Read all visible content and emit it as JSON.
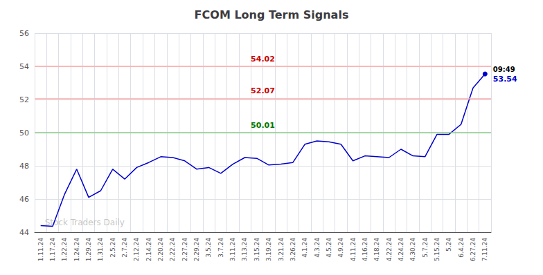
{
  "chart_data": {
    "type": "line",
    "title": "FCOM Long Term Signals",
    "categories": [
      "1.11.24",
      "1.17.24",
      "1.22.24",
      "1.24.24",
      "1.29.24",
      "1.31.24",
      "2.5.24",
      "2.7.24",
      "2.12.24",
      "2.14.24",
      "2.20.24",
      "2.22.24",
      "2.27.24",
      "2.29.24",
      "3.5.24",
      "3.7.24",
      "3.11.24",
      "3.13.24",
      "3.15.24",
      "3.19.24",
      "3.21.24",
      "3.26.24",
      "4.1.24",
      "4.3.24",
      "4.5.24",
      "4.9.24",
      "4.11.24",
      "4.16.24",
      "4.18.24",
      "4.22.24",
      "4.24.24",
      "4.30.24",
      "5.7.24",
      "5.15.24",
      "5.24",
      "6.4.24",
      "6.27.24",
      "7.11.24"
    ],
    "values": [
      44.4,
      44.35,
      46.3,
      47.8,
      46.1,
      46.5,
      47.8,
      47.2,
      47.9,
      48.2,
      48.55,
      48.5,
      48.3,
      47.8,
      47.9,
      47.55,
      48.1,
      48.5,
      48.45,
      48.05,
      48.1,
      48.2,
      49.3,
      49.5,
      49.45,
      49.3,
      48.3,
      48.6,
      48.55,
      48.5,
      49.0,
      48.6,
      48.55,
      49.9,
      49.9,
      50.5,
      52.7,
      53.54
    ],
    "color": "#0000cc",
    "hlines": [
      {
        "y": 54.02,
        "color": "#ffaaaa",
        "label": "54.02",
        "label_color": "#cc0000"
      },
      {
        "y": 52.07,
        "color": "#ffaaaa",
        "label": "52.07",
        "label_color": "#cc0000"
      },
      {
        "y": 50.01,
        "color": "#88cc88",
        "label": "50.01",
        "label_color": "#007700"
      }
    ],
    "last_label": {
      "time": "09:49",
      "price": "53.54"
    },
    "watermark": "Stock Traders Daily",
    "ylim": [
      44,
      56
    ],
    "yticks": [
      44,
      46,
      48,
      50,
      52,
      54,
      56
    ],
    "grid": true
  }
}
